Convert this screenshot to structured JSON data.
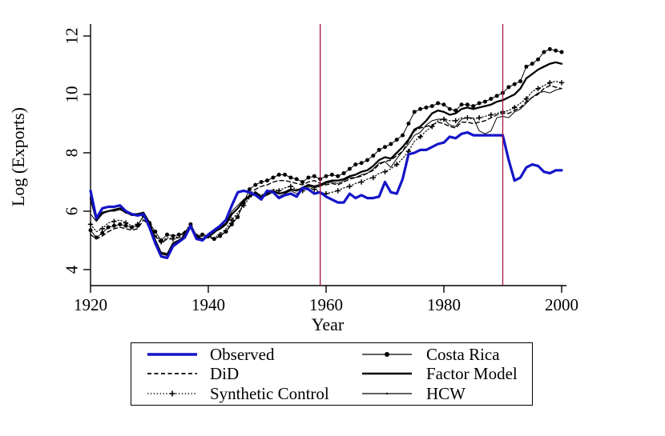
{
  "figure": {
    "background": "#ffffff",
    "axis_color": "#000000"
  },
  "chart_data": {
    "type": "line",
    "title": "",
    "xlabel": "Year",
    "ylabel": "Log (Exports)",
    "xlim": [
      1919,
      2001
    ],
    "ylim": [
      4,
      12
    ],
    "x_ticks": [
      1920,
      1940,
      1960,
      1980,
      2000
    ],
    "y_ticks": [
      4,
      6,
      8,
      10,
      12
    ],
    "grid": false,
    "legend_position": "bottom",
    "legend_columns": [
      [
        "Observed",
        "DiD",
        "Synthetic Control"
      ],
      [
        "Costa Rica",
        "Factor Model",
        "HCW"
      ]
    ],
    "vertical_reference_lines": {
      "color": "#a51140",
      "years": [
        1959,
        1990
      ]
    },
    "x_start": 1920,
    "x_step": 1,
    "series": [
      {
        "name": "Observed",
        "color": "#1414c8",
        "style": "solid-blue-thick",
        "values": [
          6.7,
          5.75,
          6.1,
          6.15,
          6.15,
          6.2,
          6.0,
          5.9,
          5.85,
          5.9,
          5.45,
          4.9,
          4.45,
          4.4,
          4.8,
          4.95,
          5.1,
          5.5,
          5.05,
          5.0,
          5.2,
          5.35,
          5.5,
          5.7,
          6.2,
          6.65,
          6.7,
          6.65,
          6.55,
          6.4,
          6.7,
          6.65,
          6.45,
          6.55,
          6.6,
          6.5,
          6.8,
          6.75,
          6.6,
          6.65,
          6.5,
          6.4,
          6.3,
          6.3,
          6.6,
          6.45,
          6.55,
          6.45,
          6.45,
          6.5,
          7.0,
          6.65,
          6.6,
          7.1,
          7.95,
          8.0,
          8.1,
          8.1,
          8.2,
          8.3,
          8.35,
          8.55,
          8.5,
          8.65,
          8.7,
          8.6,
          8.6,
          8.6,
          8.6,
          8.6,
          8.6,
          7.75,
          7.05,
          7.15,
          7.5,
          7.6,
          7.55,
          7.35,
          7.3,
          7.4,
          7.4
        ]
      },
      {
        "name": "DiD",
        "color": "#000000",
        "style": "dashed",
        "values": [
          5.2,
          5.05,
          5.15,
          5.3,
          5.4,
          5.45,
          5.4,
          5.35,
          5.4,
          5.7,
          5.5,
          5.15,
          4.9,
          5.05,
          5.05,
          5.1,
          5.2,
          5.5,
          5.1,
          5.15,
          5.1,
          5.05,
          5.15,
          5.3,
          5.6,
          5.85,
          6.25,
          6.6,
          6.75,
          6.85,
          6.9,
          7.0,
          7.05,
          7.05,
          7.0,
          6.95,
          6.9,
          7.0,
          7.05,
          6.95,
          6.9,
          6.95,
          6.9,
          7.0,
          7.1,
          7.15,
          7.2,
          7.3,
          7.4,
          7.6,
          7.7,
          7.75,
          7.9,
          8.05,
          8.4,
          8.75,
          8.85,
          8.9,
          8.95,
          9.05,
          9.0,
          8.9,
          8.85,
          9.05,
          9.05,
          9.0,
          9.05,
          9.1,
          9.2,
          9.3,
          9.35,
          9.35,
          9.45,
          9.55,
          9.75,
          9.9,
          10.0,
          10.2,
          10.3,
          10.25,
          10.2
        ]
      },
      {
        "name": "Synthetic Control",
        "color": "#000000",
        "style": "dotted-plus",
        "values": [
          5.55,
          5.3,
          5.4,
          5.6,
          5.65,
          5.7,
          5.6,
          5.5,
          5.55,
          5.8,
          5.55,
          5.2,
          4.95,
          5.1,
          5.05,
          5.15,
          5.25,
          5.6,
          5.15,
          5.2,
          5.15,
          5.1,
          5.2,
          5.4,
          5.7,
          5.95,
          6.2,
          6.45,
          6.6,
          6.55,
          6.65,
          6.75,
          6.7,
          6.8,
          6.85,
          6.75,
          6.7,
          6.8,
          6.75,
          6.65,
          6.6,
          6.65,
          6.7,
          6.8,
          6.85,
          6.95,
          7.0,
          7.1,
          7.15,
          7.3,
          7.35,
          7.45,
          7.6,
          7.8,
          8.05,
          8.4,
          8.55,
          8.75,
          8.9,
          9.1,
          9.15,
          9.1,
          9.1,
          9.2,
          9.2,
          9.15,
          9.2,
          9.25,
          9.3,
          9.35,
          9.4,
          9.45,
          9.55,
          9.7,
          9.85,
          10.1,
          10.2,
          10.3,
          10.4,
          10.45,
          10.4
        ]
      },
      {
        "name": "Costa Rica",
        "color": "#000000",
        "style": "solid-dot",
        "values": [
          5.35,
          5.1,
          5.25,
          5.45,
          5.5,
          5.55,
          5.5,
          5.45,
          5.5,
          5.85,
          5.6,
          5.3,
          5.0,
          5.2,
          5.15,
          5.2,
          5.25,
          5.55,
          5.15,
          5.2,
          5.15,
          5.05,
          5.15,
          5.3,
          5.55,
          5.8,
          6.3,
          6.75,
          6.9,
          7.0,
          7.05,
          7.15,
          7.25,
          7.25,
          7.15,
          7.1,
          7.0,
          7.15,
          7.2,
          7.1,
          7.2,
          7.25,
          7.2,
          7.3,
          7.45,
          7.6,
          7.65,
          7.75,
          7.9,
          8.1,
          8.2,
          8.3,
          8.45,
          8.6,
          9.0,
          9.4,
          9.5,
          9.55,
          9.6,
          9.7,
          9.65,
          9.5,
          9.45,
          9.65,
          9.65,
          9.6,
          9.7,
          9.75,
          9.85,
          9.95,
          10.05,
          10.25,
          10.35,
          10.45,
          10.95,
          11.05,
          11.2,
          11.45,
          11.55,
          11.5,
          11.45
        ]
      },
      {
        "name": "Factor Model",
        "color": "#000000",
        "style": "solid-bold",
        "values": [
          6.45,
          5.7,
          5.95,
          6.0,
          6.05,
          6.1,
          5.95,
          5.9,
          5.9,
          5.95,
          5.6,
          5.0,
          4.55,
          4.5,
          4.9,
          5.0,
          5.15,
          5.5,
          5.1,
          5.05,
          5.15,
          5.3,
          5.4,
          5.55,
          5.9,
          6.1,
          6.35,
          6.5,
          6.65,
          6.5,
          6.6,
          6.7,
          6.6,
          6.65,
          6.75,
          6.7,
          6.8,
          6.9,
          6.85,
          6.9,
          7.0,
          7.05,
          7.05,
          7.1,
          7.2,
          7.25,
          7.35,
          7.4,
          7.55,
          7.75,
          7.85,
          7.8,
          8.0,
          8.2,
          8.45,
          8.8,
          8.9,
          9.1,
          9.35,
          9.45,
          9.4,
          9.3,
          9.35,
          9.5,
          9.55,
          9.5,
          9.55,
          9.6,
          9.65,
          9.75,
          9.8,
          9.9,
          10.0,
          10.2,
          10.55,
          10.7,
          10.85,
          10.95,
          11.05,
          11.1,
          11.05
        ]
      },
      {
        "name": "HCW",
        "color": "#000000",
        "style": "solid-thin",
        "values": [
          5.9,
          5.65,
          5.9,
          6.0,
          6.0,
          6.05,
          5.95,
          5.85,
          5.85,
          5.9,
          5.55,
          4.95,
          4.6,
          4.55,
          4.9,
          5.0,
          5.2,
          5.55,
          5.1,
          5.05,
          5.1,
          5.25,
          5.45,
          5.6,
          6.0,
          6.2,
          6.4,
          6.55,
          6.6,
          6.45,
          6.55,
          6.65,
          6.5,
          6.6,
          6.7,
          6.6,
          6.75,
          6.85,
          6.8,
          6.85,
          6.95,
          7.0,
          6.95,
          7.05,
          7.15,
          7.15,
          7.25,
          7.3,
          7.45,
          7.65,
          7.7,
          7.5,
          7.8,
          8.05,
          8.3,
          8.6,
          8.7,
          8.95,
          9.1,
          9.15,
          9.15,
          8.95,
          8.9,
          9.15,
          9.2,
          9.2,
          8.75,
          8.65,
          8.75,
          9.2,
          9.25,
          9.2,
          9.4,
          9.5,
          9.7,
          9.9,
          10.05,
          10.1,
          10.05,
          10.15,
          10.2
        ]
      }
    ]
  }
}
